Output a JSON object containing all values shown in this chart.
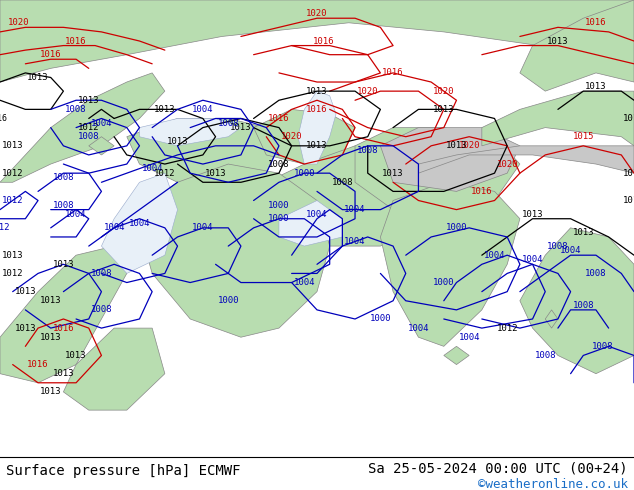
{
  "title_left": "Surface pressure [hPa] ECMWF",
  "title_right": "Sa 25-05-2024 00:00 UTC (00+24)",
  "watermark": "©weatheronline.co.uk",
  "sea_color": "#d4e8d4",
  "land_color": "#b8ddb0",
  "mountain_color": "#c8c8c8",
  "border_color": "#888888",
  "ocean_color": "#e8f0f8",
  "black": "#000000",
  "blue": "#0000bb",
  "red": "#cc0000",
  "watermark_color": "#1a6ec7",
  "title_fontsize": 10,
  "watermark_fontsize": 9,
  "label_fontsize": 6.5,
  "fig_width": 6.34,
  "fig_height": 4.9,
  "dpi": 100
}
